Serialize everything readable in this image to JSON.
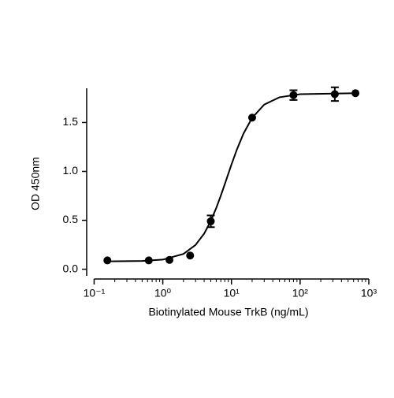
{
  "chart_data": {
    "type": "scatter",
    "x_label": "Biotinylated Mouse TrkB (ng/mL)",
    "y_label": "OD 450nm",
    "log_x": true,
    "xlim": [
      0.08,
      1000
    ],
    "xticks": [
      {
        "value": 0.1,
        "label": "10⁻¹"
      },
      {
        "value": 1,
        "label": "10⁰"
      },
      {
        "value": 10,
        "label": "10¹"
      },
      {
        "value": 100,
        "label": "10²"
      },
      {
        "value": 1000,
        "label": "10³"
      }
    ],
    "xminorticks": [
      0.2,
      0.3,
      0.4,
      0.5,
      0.6,
      0.7,
      0.8,
      0.9,
      2,
      3,
      4,
      5,
      6,
      7,
      8,
      9,
      20,
      30,
      40,
      50,
      60,
      70,
      80,
      90,
      200,
      300,
      400,
      500,
      600,
      700,
      800,
      900
    ],
    "ylim": [
      -0.1,
      1.85
    ],
    "yticks": [
      {
        "value": 0,
        "label": "0.0"
      },
      0.5,
      {
        "value": 1,
        "label": "1.0"
      },
      1.5
    ],
    "color": "#000000",
    "series": [
      {
        "x": [
          0.156,
          0.625,
          1.25,
          2.5,
          5,
          20,
          80,
          320,
          640
        ],
        "values": [
          0.09,
          0.09,
          0.095,
          0.14,
          0.49,
          1.55,
          1.78,
          1.79,
          1.8
        ],
        "errors": [
          null,
          null,
          null,
          null,
          0.06,
          null,
          0.05,
          0.07,
          null
        ]
      }
    ],
    "fit": {
      "x": [
        0.156,
        0.5,
        1,
        2,
        3,
        4,
        5,
        6,
        7,
        8,
        10,
        12,
        15,
        20,
        30,
        50,
        100,
        640
      ],
      "values": [
        0.08,
        0.084,
        0.098,
        0.156,
        0.248,
        0.364,
        0.493,
        0.625,
        0.752,
        0.87,
        1.07,
        1.224,
        1.388,
        1.547,
        1.683,
        1.758,
        1.79,
        1.8
      ]
    }
  }
}
